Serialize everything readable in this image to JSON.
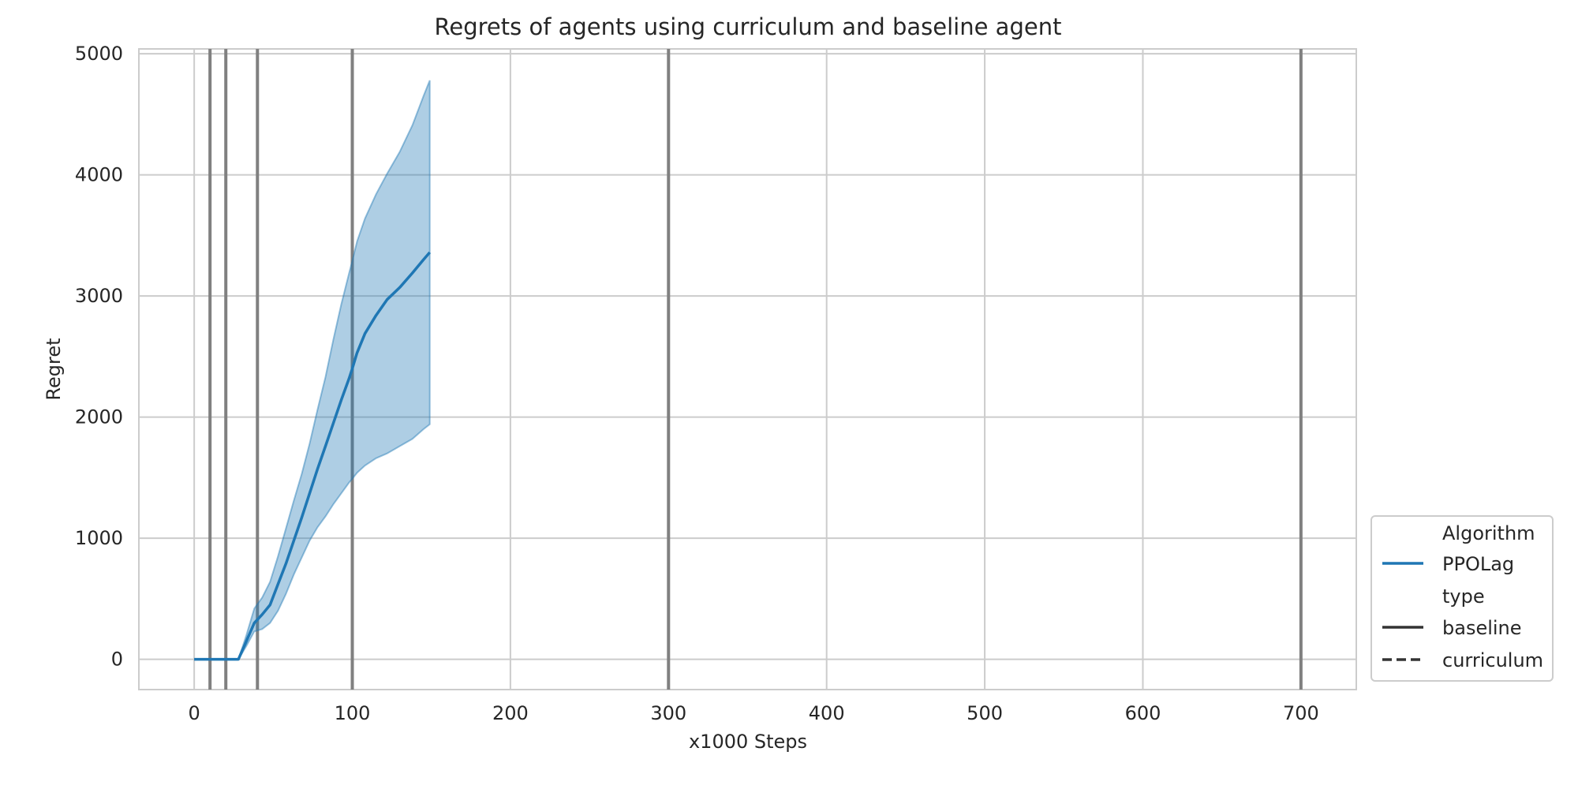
{
  "chart_data": {
    "type": "line",
    "title": "Regrets of agents using curriculum and baseline agent",
    "xlabel": "x1000 Steps",
    "ylabel": "Regret",
    "xlim": [
      -35,
      735
    ],
    "ylim": [
      -250,
      5040
    ],
    "xticks": [
      0,
      100,
      200,
      300,
      400,
      500,
      600,
      700
    ],
    "yticks": [
      0,
      1000,
      2000,
      3000,
      4000,
      5000
    ],
    "grid": true,
    "legend_position": "lower-right",
    "vertical_lines": [
      10,
      20,
      40,
      100,
      300,
      700
    ],
    "series": [
      {
        "name": "PPOLag",
        "style": "baseline",
        "color": "#1f77b4",
        "x": [
          0,
          10,
          20,
          28,
          33,
          38,
          43,
          48,
          53,
          58,
          63,
          68,
          73,
          78,
          83,
          88,
          93,
          98,
          100,
          103,
          108,
          115,
          122,
          130,
          138,
          145,
          149
        ],
        "y": [
          0,
          0,
          0,
          0,
          150,
          300,
          370,
          450,
          620,
          790,
          980,
          1170,
          1370,
          1570,
          1760,
          1950,
          2140,
          2320,
          2400,
          2530,
          2690,
          2840,
          2970,
          3070,
          3190,
          3300,
          3360
        ],
        "ci_lower": [
          0,
          0,
          0,
          0,
          110,
          230,
          250,
          300,
          400,
          540,
          700,
          840,
          980,
          1090,
          1180,
          1280,
          1370,
          1460,
          1490,
          1540,
          1600,
          1660,
          1700,
          1760,
          1820,
          1900,
          1940
        ],
        "ci_upper": [
          0,
          0,
          0,
          0,
          200,
          420,
          510,
          640,
          850,
          1080,
          1310,
          1530,
          1780,
          2060,
          2330,
          2640,
          2930,
          3190,
          3290,
          3450,
          3640,
          3840,
          4010,
          4190,
          4410,
          4650,
          4780
        ]
      }
    ],
    "legend": {
      "hue_title": "Algorithm",
      "hue_entries": [
        {
          "label": "PPOLag",
          "color": "#1f77b4"
        }
      ],
      "style_title": "type",
      "style_entries": [
        {
          "label": "baseline",
          "dash": "solid"
        },
        {
          "label": "curriculum",
          "dash": "dashed"
        }
      ]
    }
  }
}
